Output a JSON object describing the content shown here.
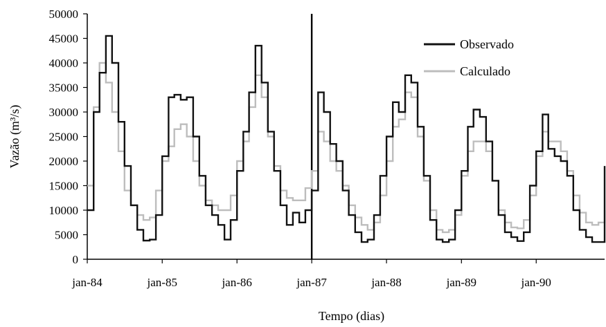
{
  "chart_data": {
    "type": "line",
    "title": "",
    "xlabel": "Tempo (dias)",
    "ylabel": "Vazão (m³/s)",
    "ylim": [
      0,
      50000
    ],
    "yticks": [
      0,
      5000,
      10000,
      15000,
      20000,
      25000,
      30000,
      35000,
      40000,
      45000,
      50000
    ],
    "ytick_labels": [
      "0",
      "5000",
      "10000",
      "15000",
      "20000",
      "25000",
      "30000",
      "35000",
      "40000",
      "45000",
      "50000"
    ],
    "xlim": [
      "1984-01-01",
      "1990-12-01"
    ],
    "xticks": [
      "1984-01-01",
      "1985-01-01",
      "1986-01-01",
      "1987-01-01",
      "1988-01-01",
      "1989-01-01",
      "1990-01-01"
    ],
    "xtick_labels": [
      "jan-84",
      "jan-85",
      "jan-86",
      "jan-87",
      "jan-88",
      "jan-89",
      "jan-90"
    ],
    "grid": false,
    "legend_position": "top-right",
    "vertical_marker": "1987-01-01",
    "series_colors": {
      "Observado": "#111111",
      "Calculado": "#bdbdbd"
    },
    "series": [
      {
        "name": "Observado",
        "x": [
          "1984-01-01",
          "1984-02-01",
          "1984-03-01",
          "1984-04-01",
          "1984-05-01",
          "1984-06-01",
          "1984-07-01",
          "1984-08-01",
          "1984-09-01",
          "1984-10-01",
          "1984-11-01",
          "1984-12-01",
          "1985-01-01",
          "1985-02-01",
          "1985-03-01",
          "1985-04-01",
          "1985-05-01",
          "1985-06-01",
          "1985-07-01",
          "1985-08-01",
          "1985-09-01",
          "1985-10-01",
          "1985-11-01",
          "1985-12-01",
          "1986-01-01",
          "1986-02-01",
          "1986-03-01",
          "1986-04-01",
          "1986-05-01",
          "1986-06-01",
          "1986-07-01",
          "1986-08-01",
          "1986-09-01",
          "1986-10-01",
          "1986-11-01",
          "1986-12-01",
          "1987-01-01",
          "1987-02-01",
          "1987-03-01",
          "1987-04-01",
          "1987-05-01",
          "1987-06-01",
          "1987-07-01",
          "1987-08-01",
          "1987-09-01",
          "1987-10-01",
          "1987-11-01",
          "1987-12-01",
          "1988-01-01",
          "1988-02-01",
          "1988-03-01",
          "1988-04-01",
          "1988-05-01",
          "1988-06-01",
          "1988-07-01",
          "1988-08-01",
          "1988-09-01",
          "1988-10-01",
          "1988-11-01",
          "1988-12-01",
          "1989-01-01",
          "1989-02-01",
          "1989-03-01",
          "1989-04-01",
          "1989-05-01",
          "1989-06-01",
          "1989-07-01",
          "1989-08-01",
          "1989-09-01",
          "1989-10-01",
          "1989-11-01",
          "1989-12-01",
          "1990-01-01",
          "1990-02-01",
          "1990-03-01",
          "1990-04-01",
          "1990-05-01",
          "1990-06-01",
          "1990-07-01",
          "1990-08-01",
          "1990-09-01",
          "1990-10-01",
          "1990-11-01",
          "1990-12-01"
        ],
        "values": [
          10000,
          30000,
          38000,
          45500,
          40000,
          28000,
          19000,
          11000,
          6000,
          3800,
          4000,
          9000,
          21000,
          33000,
          33500,
          32500,
          33000,
          25000,
          17000,
          11000,
          9000,
          7000,
          4000,
          8000,
          18000,
          26000,
          34000,
          43500,
          36000,
          26000,
          18000,
          11000,
          7000,
          9500,
          7500,
          10000,
          14000,
          34000,
          30000,
          23500,
          20000,
          14000,
          9000,
          5500,
          3500,
          4000,
          9000,
          17000,
          25000,
          32000,
          30000,
          37500,
          36000,
          27000,
          17000,
          8000,
          4000,
          3500,
          4000,
          10000,
          18000,
          27000,
          30500,
          29000,
          24000,
          16000,
          9000,
          5500,
          4500,
          3700,
          5500,
          15000,
          22000,
          29500,
          22500,
          21000,
          20000,
          17000,
          10000,
          6000,
          4500,
          3500,
          3500,
          19000
        ]
      },
      {
        "name": "Calculado",
        "x": [
          "1984-01-01",
          "1984-02-01",
          "1984-03-01",
          "1984-04-01",
          "1984-05-01",
          "1984-06-01",
          "1984-07-01",
          "1984-08-01",
          "1984-09-01",
          "1984-10-01",
          "1984-11-01",
          "1984-12-01",
          "1985-01-01",
          "1985-02-01",
          "1985-03-01",
          "1985-04-01",
          "1985-05-01",
          "1985-06-01",
          "1985-07-01",
          "1985-08-01",
          "1985-09-01",
          "1985-10-01",
          "1985-11-01",
          "1985-12-01",
          "1986-01-01",
          "1986-02-01",
          "1986-03-01",
          "1986-04-01",
          "1986-05-01",
          "1986-06-01",
          "1986-07-01",
          "1986-08-01",
          "1986-09-01",
          "1986-10-01",
          "1986-11-01",
          "1986-12-01",
          "1987-01-01",
          "1987-02-01",
          "1987-03-01",
          "1987-04-01",
          "1987-05-01",
          "1987-06-01",
          "1987-07-01",
          "1987-08-01",
          "1987-09-01",
          "1987-10-01",
          "1987-11-01",
          "1987-12-01",
          "1988-01-01",
          "1988-02-01",
          "1988-03-01",
          "1988-04-01",
          "1988-05-01",
          "1988-06-01",
          "1988-07-01",
          "1988-08-01",
          "1988-09-01",
          "1988-10-01",
          "1988-11-01",
          "1988-12-01",
          "1989-01-01",
          "1989-02-01",
          "1989-03-01",
          "1989-04-01",
          "1989-05-01",
          "1989-06-01",
          "1989-07-01",
          "1989-08-01",
          "1989-09-01",
          "1989-10-01",
          "1989-11-01",
          "1989-12-01",
          "1990-01-01",
          "1990-02-01",
          "1990-03-01",
          "1990-04-01",
          "1990-05-01",
          "1990-06-01",
          "1990-07-01",
          "1990-08-01",
          "1990-09-01",
          "1990-10-01",
          "1990-11-01",
          "1990-12-01"
        ],
        "values": [
          15000,
          31000,
          40000,
          36000,
          30000,
          22000,
          14000,
          11000,
          9000,
          8000,
          8500,
          14000,
          20000,
          23000,
          26500,
          27500,
          25000,
          20000,
          15000,
          12000,
          11000,
          10000,
          10000,
          13000,
          20000,
          24000,
          31000,
          37500,
          33000,
          25000,
          19000,
          14000,
          12500,
          12000,
          12000,
          14500,
          18000,
          26000,
          24000,
          20000,
          18000,
          15000,
          11000,
          8500,
          7000,
          6000,
          7500,
          13000,
          20000,
          27000,
          28500,
          34000,
          33000,
          25000,
          16000,
          10000,
          6000,
          5500,
          6000,
          9000,
          17000,
          22000,
          24000,
          24000,
          22000,
          16000,
          10000,
          7500,
          6500,
          6300,
          8000,
          13000,
          21000,
          26000,
          24000,
          24000,
          22000,
          18000,
          13000,
          9500,
          7500,
          7000,
          7500,
          10000
        ]
      }
    ]
  }
}
